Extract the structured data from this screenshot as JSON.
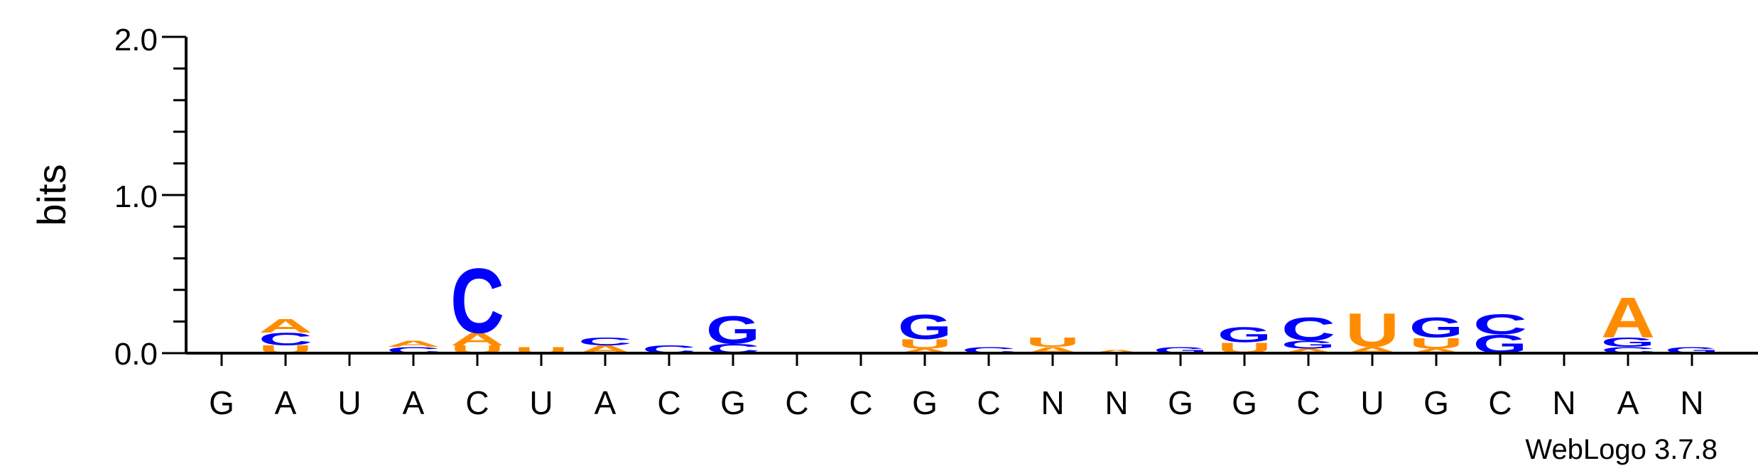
{
  "chart_data": {
    "type": "sequence-logo",
    "ylabel": "bits",
    "ylim": [
      0,
      2.0
    ],
    "yticks": [
      "0.0",
      "1.0",
      "2.0"
    ],
    "credit": "WebLogo 3.7.8",
    "colors": {
      "A": "#ff8c00",
      "U": "#ff8c00",
      "C": "#0000ff",
      "G": "#0000ff"
    },
    "positions": [
      {
        "label": "G",
        "stack": []
      },
      {
        "label": "A",
        "stack": [
          {
            "letter": "U",
            "bits": 0.05
          },
          {
            "letter": "C",
            "bits": 0.08
          },
          {
            "letter": "A",
            "bits": 0.09
          }
        ]
      },
      {
        "label": "U",
        "stack": []
      },
      {
        "label": "A",
        "stack": [
          {
            "letter": "C",
            "bits": 0.04
          },
          {
            "letter": "A",
            "bits": 0.04
          }
        ]
      },
      {
        "label": "C",
        "stack": [
          {
            "letter": "U",
            "bits": 0.05
          },
          {
            "letter": "A",
            "bits": 0.08
          },
          {
            "letter": "C",
            "bits": 0.42
          }
        ]
      },
      {
        "label": "U",
        "stack": [
          {
            "letter": "U",
            "bits": 0.04
          }
        ]
      },
      {
        "label": "A",
        "stack": [
          {
            "letter": "A",
            "bits": 0.05
          },
          {
            "letter": "C",
            "bits": 0.05
          }
        ]
      },
      {
        "label": "C",
        "stack": [
          {
            "letter": "C",
            "bits": 0.05
          }
        ]
      },
      {
        "label": "G",
        "stack": [
          {
            "letter": "C",
            "bits": 0.06
          },
          {
            "letter": "G",
            "bits": 0.18
          }
        ]
      },
      {
        "label": "C",
        "stack": []
      },
      {
        "label": "C",
        "stack": []
      },
      {
        "label": "G",
        "stack": [
          {
            "letter": "A",
            "bits": 0.03
          },
          {
            "letter": "U",
            "bits": 0.06
          },
          {
            "letter": "G",
            "bits": 0.16
          }
        ]
      },
      {
        "label": "C",
        "stack": [
          {
            "letter": "C",
            "bits": 0.04
          }
        ]
      },
      {
        "label": "N",
        "stack": [
          {
            "letter": "A",
            "bits": 0.04
          },
          {
            "letter": "U",
            "bits": 0.06
          }
        ]
      },
      {
        "label": "N",
        "stack": [
          {
            "letter": "A",
            "bits": 0.02
          }
        ]
      },
      {
        "label": "G",
        "stack": [
          {
            "letter": "G",
            "bits": 0.04
          }
        ]
      },
      {
        "label": "G",
        "stack": [
          {
            "letter": "U",
            "bits": 0.07
          },
          {
            "letter": "G",
            "bits": 0.1
          }
        ]
      },
      {
        "label": "C",
        "stack": [
          {
            "letter": "A",
            "bits": 0.03
          },
          {
            "letter": "G",
            "bits": 0.05
          },
          {
            "letter": "C",
            "bits": 0.15
          }
        ]
      },
      {
        "label": "U",
        "stack": [
          {
            "letter": "A",
            "bits": 0.04
          },
          {
            "letter": "U",
            "bits": 0.22
          }
        ]
      },
      {
        "label": "G",
        "stack": [
          {
            "letter": "A",
            "bits": 0.03
          },
          {
            "letter": "U",
            "bits": 0.07
          },
          {
            "letter": "G",
            "bits": 0.13
          }
        ]
      },
      {
        "label": "C",
        "stack": [
          {
            "letter": "G",
            "bits": 0.12
          },
          {
            "letter": "C",
            "bits": 0.13
          }
        ]
      },
      {
        "label": "N",
        "stack": []
      },
      {
        "label": "A",
        "stack": [
          {
            "letter": "C",
            "bits": 0.04
          },
          {
            "letter": "G",
            "bits": 0.06
          },
          {
            "letter": "A",
            "bits": 0.26
          }
        ]
      },
      {
        "label": "N",
        "stack": [
          {
            "letter": "G",
            "bits": 0.04
          }
        ]
      }
    ]
  }
}
